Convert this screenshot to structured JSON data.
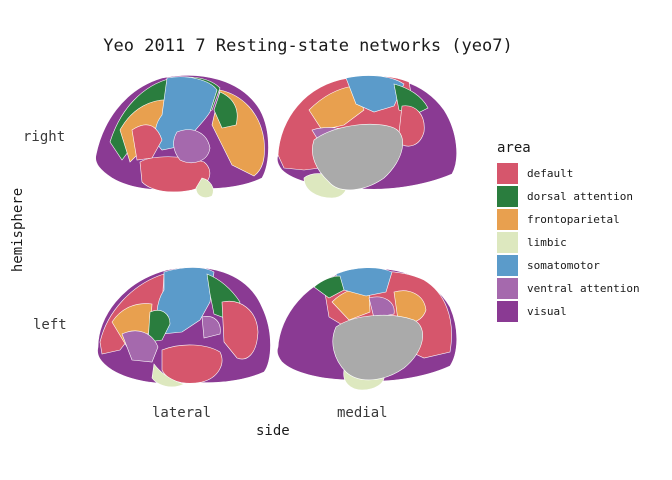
{
  "title": "Yeo 2011 7 Resting-state networks (yeo7)",
  "axes": {
    "x_title": "side",
    "y_title": "hemisphere",
    "x_labels": [
      "lateral",
      "medial"
    ],
    "y_labels": [
      "right",
      "left"
    ]
  },
  "legend": {
    "title": "area",
    "items": [
      {
        "label": "default",
        "color": "#d6566c"
      },
      {
        "label": "dorsal attention",
        "color": "#2a7d3e"
      },
      {
        "label": "frontoparietal",
        "color": "#e8a04f"
      },
      {
        "label": "limbic",
        "color": "#dde8bf"
      },
      {
        "label": "somatomotor",
        "color": "#5b9bca"
      },
      {
        "label": "ventral attention",
        "color": "#a569ad"
      },
      {
        "label": "visual",
        "color": "#8a3a93"
      }
    ],
    "medial_wall_color": "#aaaaaa"
  }
}
